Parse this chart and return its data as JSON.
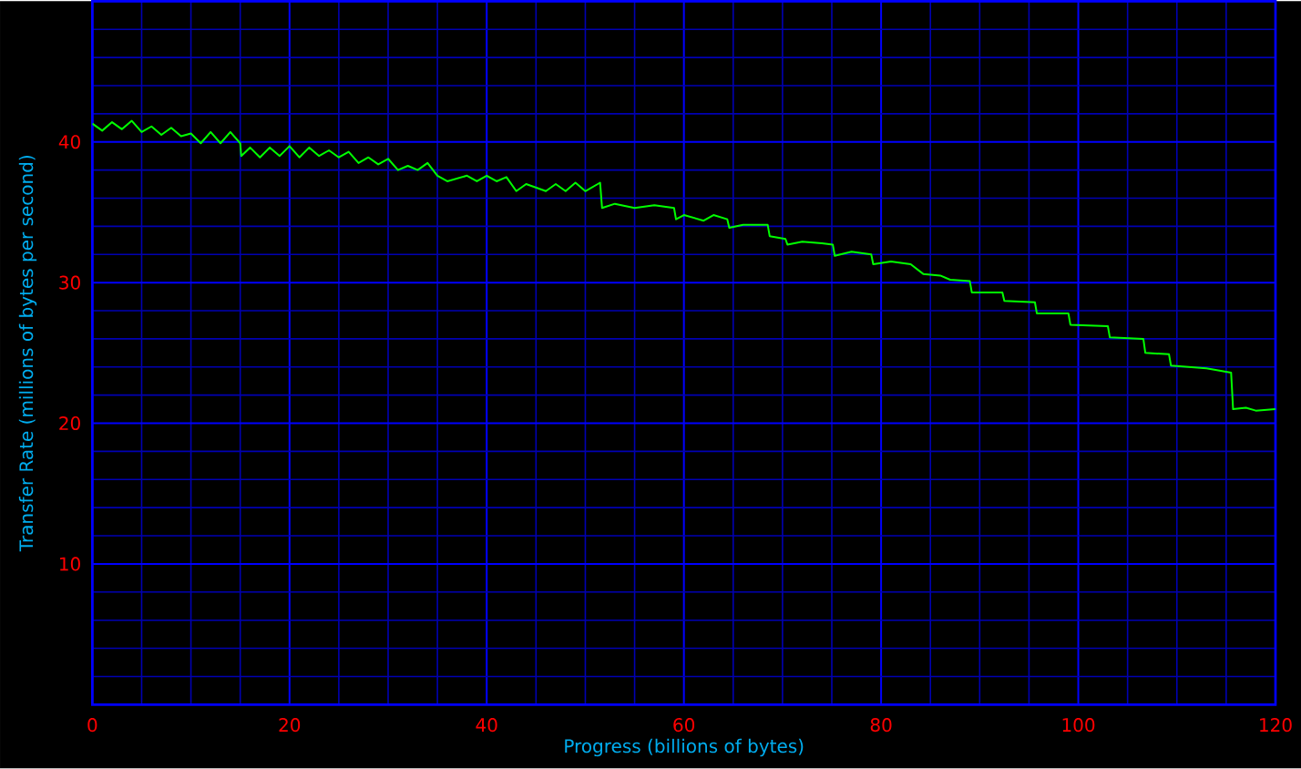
{
  "chart_data": {
    "type": "line",
    "xlabel": "Progress (billions of bytes)",
    "ylabel": "Transfer Rate (millions of bytes per second)",
    "xlim": [
      0,
      120
    ],
    "ylim": [
      0,
      50
    ],
    "xticks": [
      0,
      {
        "value": 5,
        "label": null
      },
      {
        "value": 10,
        "label": null
      },
      {
        "value": 15,
        "label": null
      },
      20,
      {
        "value": 25,
        "label": null
      },
      {
        "value": 30,
        "label": null
      },
      {
        "value": 35,
        "label": null
      },
      40,
      {
        "value": 45,
        "label": null
      },
      {
        "value": 50,
        "label": null
      },
      {
        "value": 55,
        "label": null
      },
      60,
      {
        "value": 65,
        "label": null
      },
      {
        "value": 70,
        "label": null
      },
      {
        "value": 75,
        "label": null
      },
      80,
      {
        "value": 85,
        "label": null
      },
      {
        "value": 90,
        "label": null
      },
      {
        "value": 95,
        "label": null
      },
      100,
      {
        "value": 105,
        "label": null
      },
      {
        "value": 110,
        "label": null
      },
      {
        "value": 115,
        "label": null
      },
      120
    ],
    "yticks": [
      {
        "value": 0,
        "label": null
      },
      {
        "value": 2,
        "label": null
      },
      {
        "value": 4,
        "label": null
      },
      {
        "value": 6,
        "label": null
      },
      {
        "value": 8,
        "label": null
      },
      10,
      {
        "value": 12,
        "label": null
      },
      {
        "value": 14,
        "label": null
      },
      {
        "value": 16,
        "label": null
      },
      {
        "value": 18,
        "label": null
      },
      20,
      {
        "value": 22,
        "label": null
      },
      {
        "value": 24,
        "label": null
      },
      {
        "value": 26,
        "label": null
      },
      {
        "value": 28,
        "label": null
      },
      30,
      {
        "value": 32,
        "label": null
      },
      {
        "value": 34,
        "label": null
      },
      {
        "value": 36,
        "label": null
      },
      {
        "value": 38,
        "label": null
      },
      40,
      {
        "value": 42,
        "label": null
      },
      {
        "value": 44,
        "label": null
      },
      {
        "value": 46,
        "label": null
      },
      {
        "value": 48,
        "label": null
      },
      {
        "value": 50,
        "label": null
      }
    ],
    "grid": true,
    "marker": "none",
    "line_style": "solid",
    "series": [
      {
        "color": "#00ff00",
        "x": [
          0,
          1,
          2,
          3,
          4,
          5,
          6,
          7,
          8,
          9,
          10,
          11,
          12,
          13,
          14,
          15,
          15.1,
          16,
          17,
          18,
          19,
          20,
          21,
          22,
          23,
          24,
          25,
          26,
          27,
          28,
          29,
          30,
          31,
          32,
          33,
          34,
          35,
          36,
          38,
          39,
          40,
          41,
          42,
          43,
          44,
          46,
          47,
          48,
          49,
          50,
          51.5,
          51.7,
          53,
          55,
          57,
          59,
          59.2,
          60,
          62,
          63,
          64.4,
          64.6,
          66,
          68.5,
          68.7,
          70.3,
          70.5,
          72,
          74,
          75.1,
          75.3,
          77,
          79,
          79.2,
          81,
          83,
          84.3,
          86,
          87,
          89,
          89.2,
          92.3,
          92.5,
          95.6,
          95.8,
          99,
          99.2,
          103,
          103.2,
          106.6,
          106.8,
          109.2,
          109.4,
          113,
          115.5,
          115.7,
          117,
          118,
          120
        ],
        "values": [
          41.3,
          40.8,
          41.4,
          40.9,
          41.5,
          40.7,
          41.1,
          40.5,
          41.0,
          40.4,
          40.6,
          39.9,
          40.7,
          39.9,
          40.7,
          39.9,
          39.0,
          39.6,
          38.9,
          39.6,
          39.0,
          39.7,
          38.9,
          39.6,
          39.0,
          39.4,
          38.9,
          39.3,
          38.5,
          38.9,
          38.4,
          38.8,
          38.0,
          38.3,
          38.0,
          38.5,
          37.6,
          37.2,
          37.6,
          37.2,
          37.6,
          37.2,
          37.5,
          36.5,
          37.0,
          36.5,
          37.0,
          36.5,
          37.1,
          36.5,
          37.1,
          35.3,
          35.6,
          35.3,
          35.5,
          35.3,
          34.5,
          34.8,
          34.4,
          34.8,
          34.5,
          33.9,
          34.1,
          34.1,
          33.3,
          33.1,
          32.7,
          32.9,
          32.8,
          32.7,
          31.9,
          32.2,
          32.0,
          31.3,
          31.5,
          31.3,
          30.6,
          30.5,
          30.2,
          30.1,
          29.3,
          29.3,
          28.7,
          28.6,
          27.8,
          27.8,
          27.0,
          26.9,
          26.1,
          26.0,
          25.0,
          24.9,
          24.1,
          23.9,
          23.6,
          21.0,
          21.1,
          20.9,
          21.0
        ]
      }
    ]
  }
}
